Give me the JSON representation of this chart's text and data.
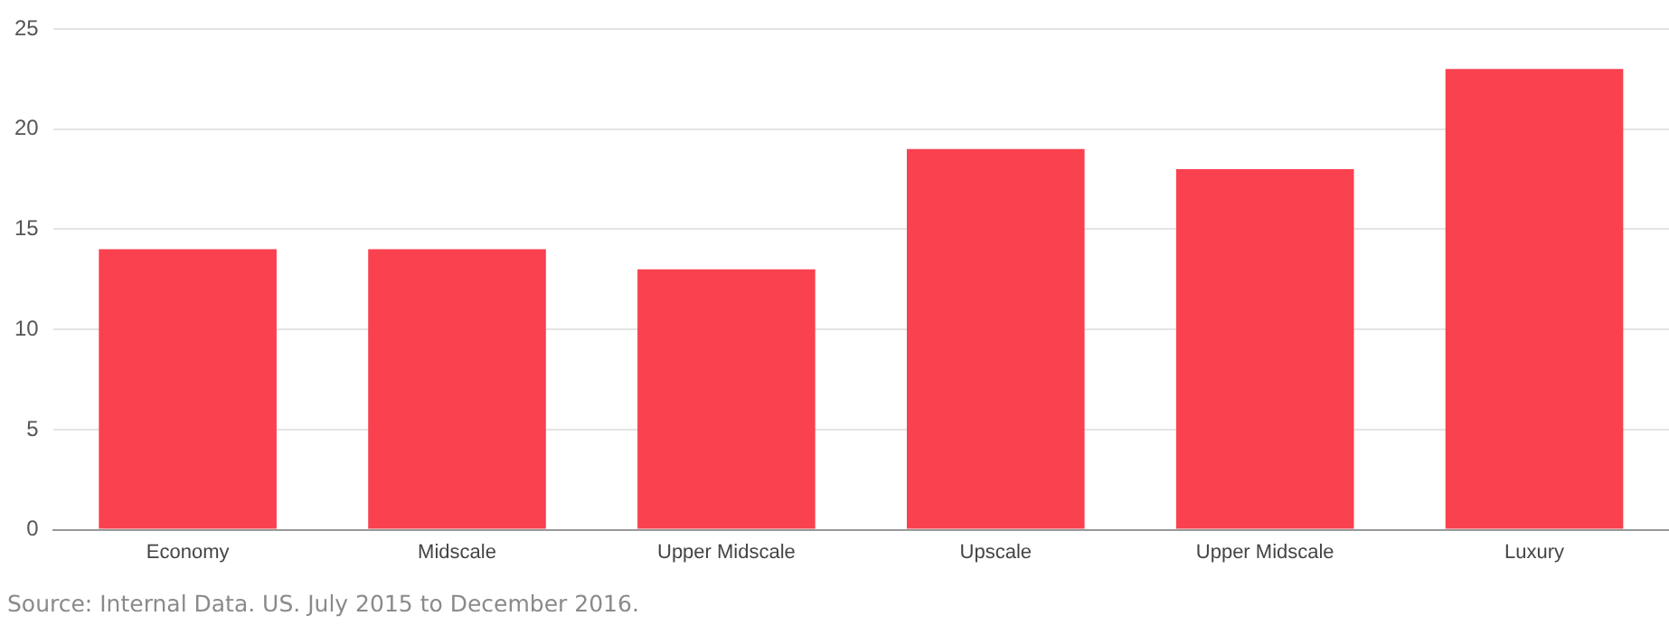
{
  "chart_data": {
    "type": "bar",
    "categories": [
      "Economy",
      "Midscale",
      "Upper Midscale",
      "Upscale",
      "Upper Midscale",
      "Luxury"
    ],
    "values": [
      14,
      14,
      13,
      19,
      18,
      23
    ],
    "color": "#f9414f",
    "ylim": [
      0,
      25
    ],
    "yticks": [
      0,
      5,
      10,
      15,
      20,
      25
    ],
    "grid": "y",
    "annotations": [
      "Source: Internal Data. US. July 2015 to December 2016."
    ]
  }
}
